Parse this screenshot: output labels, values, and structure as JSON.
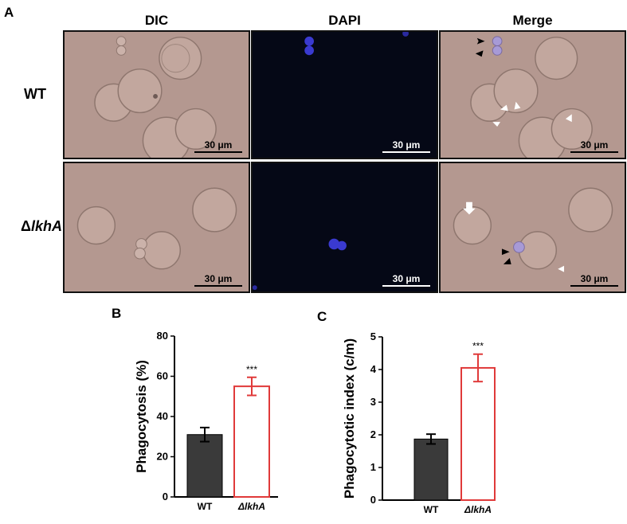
{
  "figure": {
    "panel_labels": {
      "a": "A",
      "b": "B",
      "c": "C"
    },
    "columns": [
      "DIC",
      "DAPI",
      "Merge"
    ],
    "rows": [
      {
        "label_prefix": "",
        "label_italic": "WT"
      },
      {
        "label_prefix": "Δ",
        "label_italic": "lkhA"
      }
    ],
    "scale_bar": "30 μm",
    "significance": "***"
  },
  "chart_data": [
    {
      "type": "bar",
      "panel": "B",
      "categories": [
        "WT",
        "ΔlkhA"
      ],
      "values": [
        31,
        55
      ],
      "errors": [
        3.5,
        4.5
      ],
      "ylabel": "Phagocytosis (%)",
      "xlabel": "",
      "ylim": [
        0,
        80
      ],
      "yticks": [
        0,
        20,
        40,
        60,
        80
      ],
      "bar_styles": [
        "filled",
        "outline"
      ],
      "colors": {
        "filled": "#3a3a3a",
        "outline": "#e03a3a"
      },
      "significance": "***"
    },
    {
      "type": "bar",
      "panel": "C",
      "categories": [
        "WT",
        "ΔlkhA"
      ],
      "values": [
        1.87,
        4.05
      ],
      "errors": [
        0.15,
        0.42
      ],
      "ylabel": "Phagocytotic index (c/m)",
      "xlabel": "",
      "ylim": [
        0,
        5
      ],
      "yticks": [
        0,
        1,
        2,
        3,
        4,
        5
      ],
      "bar_styles": [
        "filled",
        "outline"
      ],
      "colors": {
        "filled": "#3a3a3a",
        "outline": "#e03a3a"
      },
      "significance": "***"
    }
  ]
}
